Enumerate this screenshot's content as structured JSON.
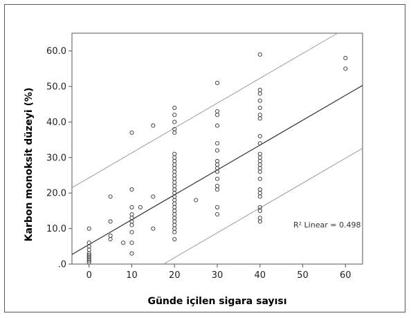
{
  "chart_data": {
    "type": "scatter",
    "xlabel": "Günde içilen sigara sayısı",
    "ylabel": "Karbon monoksit düzeyi (%)",
    "xlim": [
      -4,
      64
    ],
    "ylim": [
      0,
      65
    ],
    "xticks": [
      0,
      10,
      20,
      30,
      40,
      50,
      60
    ],
    "xtick_labels": [
      "0",
      "10",
      "20",
      "30",
      "40",
      "50",
      "60"
    ],
    "yticks": [
      0,
      10,
      20,
      30,
      40,
      50,
      60
    ],
    "ytick_labels": [
      ".0",
      "10.0",
      "20.0",
      "30.0",
      "40.0",
      "50.0",
      "60.0"
    ],
    "annotation": "R² Linear = 0.498",
    "grid": false,
    "colors": {
      "frame": "#555555",
      "points": "#333333",
      "fit_line": "#222222",
      "ci_line": "#9a9a9a",
      "background": "#ffffff"
    },
    "fit_line": {
      "intercept": 5.5,
      "slope": 0.7
    },
    "prediction_bands": [
      {
        "intercept": -12.2,
        "slope": 0.7
      },
      {
        "intercept": 24.3,
        "slope": 0.7
      }
    ],
    "points": [
      {
        "x": 0,
        "y": 10
      },
      {
        "x": 0,
        "y": 6
      },
      {
        "x": 0,
        "y": 5
      },
      {
        "x": 0,
        "y": 4
      },
      {
        "x": 0,
        "y": 3
      },
      {
        "x": 0,
        "y": 2.5
      },
      {
        "x": 0,
        "y": 2
      },
      {
        "x": 0,
        "y": 1.5
      },
      {
        "x": 0,
        "y": 1
      },
      {
        "x": 0,
        "y": 0.5
      },
      {
        "x": 5,
        "y": 19
      },
      {
        "x": 5,
        "y": 12
      },
      {
        "x": 5,
        "y": 8
      },
      {
        "x": 5,
        "y": 7
      },
      {
        "x": 8,
        "y": 6
      },
      {
        "x": 10,
        "y": 37
      },
      {
        "x": 10,
        "y": 21
      },
      {
        "x": 10,
        "y": 16
      },
      {
        "x": 10,
        "y": 14
      },
      {
        "x": 10,
        "y": 13
      },
      {
        "x": 10,
        "y": 12
      },
      {
        "x": 10,
        "y": 11
      },
      {
        "x": 10,
        "y": 9
      },
      {
        "x": 10,
        "y": 6
      },
      {
        "x": 10,
        "y": 3
      },
      {
        "x": 12,
        "y": 16
      },
      {
        "x": 15,
        "y": 39
      },
      {
        "x": 15,
        "y": 19
      },
      {
        "x": 15,
        "y": 10
      },
      {
        "x": 20,
        "y": 44
      },
      {
        "x": 20,
        "y": 42
      },
      {
        "x": 20,
        "y": 40
      },
      {
        "x": 20,
        "y": 38
      },
      {
        "x": 20,
        "y": 37
      },
      {
        "x": 20,
        "y": 31
      },
      {
        "x": 20,
        "y": 30
      },
      {
        "x": 20,
        "y": 29
      },
      {
        "x": 20,
        "y": 28
      },
      {
        "x": 20,
        "y": 27
      },
      {
        "x": 20,
        "y": 26
      },
      {
        "x": 20,
        "y": 25
      },
      {
        "x": 20,
        "y": 24
      },
      {
        "x": 20,
        "y": 23
      },
      {
        "x": 20,
        "y": 22
      },
      {
        "x": 20,
        "y": 21
      },
      {
        "x": 20,
        "y": 20
      },
      {
        "x": 20,
        "y": 19
      },
      {
        "x": 20,
        "y": 18
      },
      {
        "x": 20,
        "y": 17
      },
      {
        "x": 20,
        "y": 16
      },
      {
        "x": 20,
        "y": 15
      },
      {
        "x": 20,
        "y": 14
      },
      {
        "x": 20,
        "y": 13
      },
      {
        "x": 20,
        "y": 12
      },
      {
        "x": 20,
        "y": 11
      },
      {
        "x": 20,
        "y": 10
      },
      {
        "x": 20,
        "y": 9
      },
      {
        "x": 20,
        "y": 7
      },
      {
        "x": 25,
        "y": 18
      },
      {
        "x": 30,
        "y": 51
      },
      {
        "x": 30,
        "y": 43
      },
      {
        "x": 30,
        "y": 42
      },
      {
        "x": 30,
        "y": 39
      },
      {
        "x": 30,
        "y": 34
      },
      {
        "x": 30,
        "y": 32
      },
      {
        "x": 30,
        "y": 29
      },
      {
        "x": 30,
        "y": 28
      },
      {
        "x": 30,
        "y": 27
      },
      {
        "x": 30,
        "y": 26
      },
      {
        "x": 30,
        "y": 24
      },
      {
        "x": 30,
        "y": 22
      },
      {
        "x": 30,
        "y": 21
      },
      {
        "x": 30,
        "y": 16
      },
      {
        "x": 30,
        "y": 14
      },
      {
        "x": 40,
        "y": 59
      },
      {
        "x": 40,
        "y": 49
      },
      {
        "x": 40,
        "y": 48
      },
      {
        "x": 40,
        "y": 46
      },
      {
        "x": 40,
        "y": 44
      },
      {
        "x": 40,
        "y": 42
      },
      {
        "x": 40,
        "y": 41
      },
      {
        "x": 40,
        "y": 36
      },
      {
        "x": 40,
        "y": 34
      },
      {
        "x": 40,
        "y": 31
      },
      {
        "x": 40,
        "y": 30
      },
      {
        "x": 40,
        "y": 29
      },
      {
        "x": 40,
        "y": 28
      },
      {
        "x": 40,
        "y": 27
      },
      {
        "x": 40,
        "y": 26
      },
      {
        "x": 40,
        "y": 24
      },
      {
        "x": 40,
        "y": 21
      },
      {
        "x": 40,
        "y": 20
      },
      {
        "x": 40,
        "y": 19
      },
      {
        "x": 40,
        "y": 16
      },
      {
        "x": 40,
        "y": 15
      },
      {
        "x": 40,
        "y": 13
      },
      {
        "x": 40,
        "y": 12
      },
      {
        "x": 60,
        "y": 58
      },
      {
        "x": 60,
        "y": 55
      }
    ]
  }
}
